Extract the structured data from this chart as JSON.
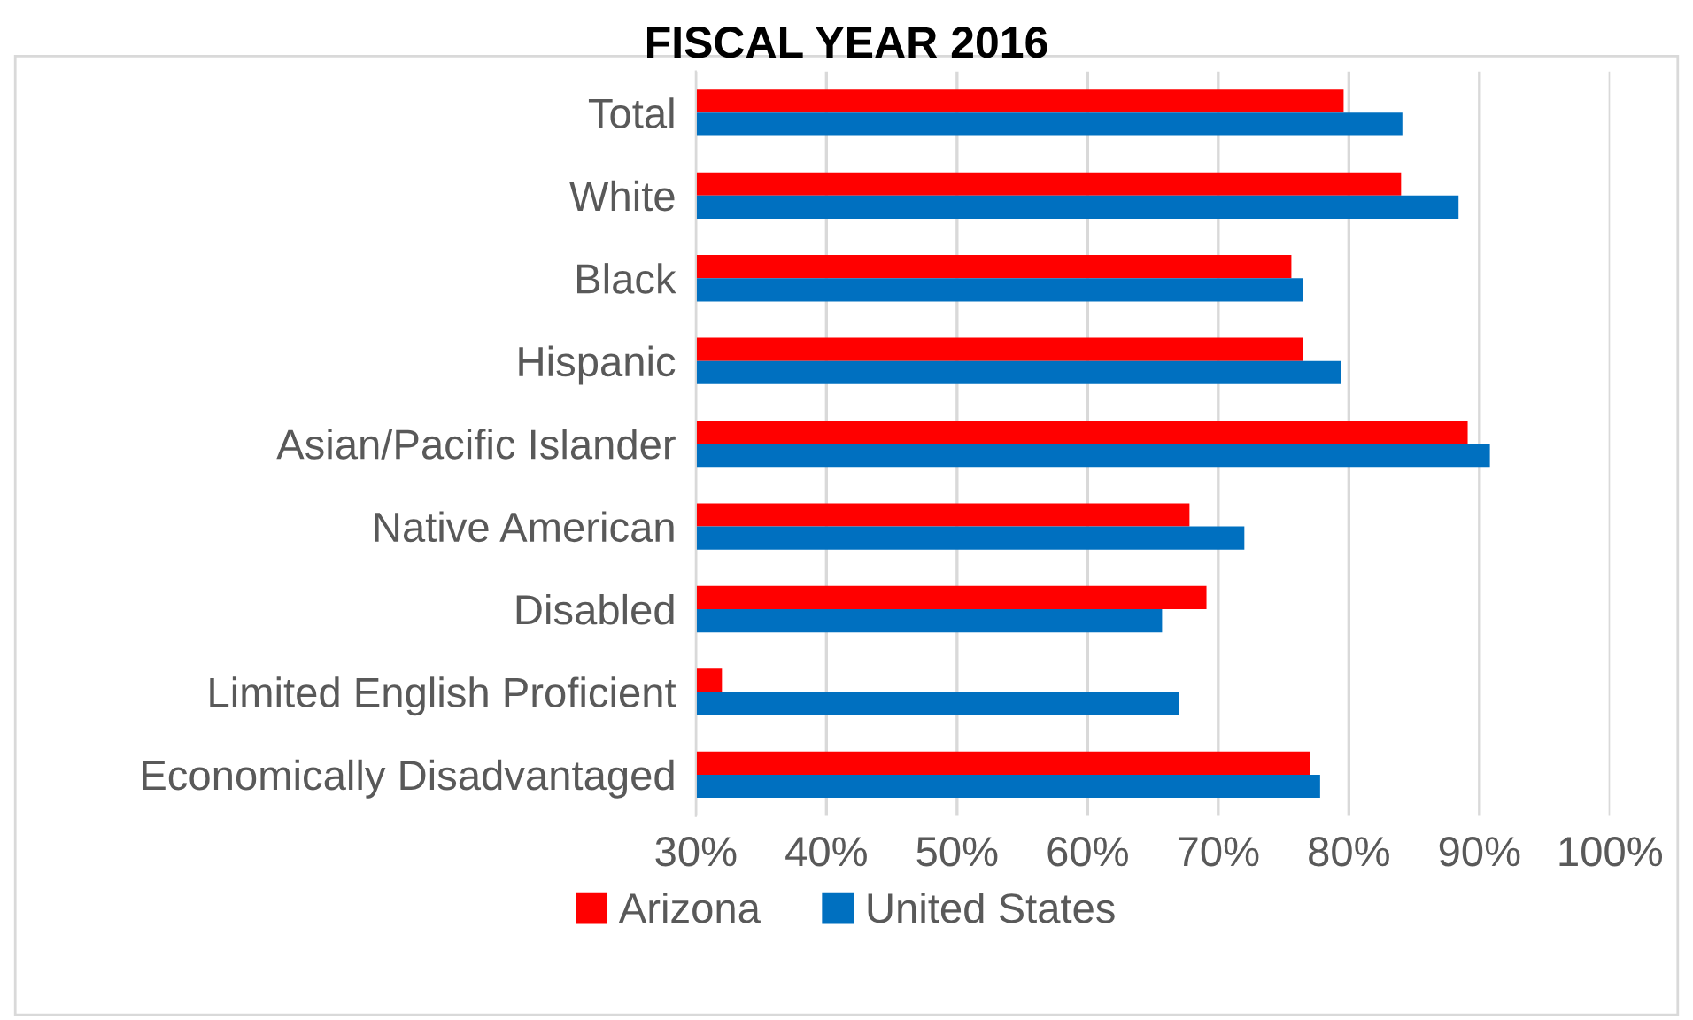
{
  "chart_data": {
    "type": "bar",
    "orientation": "horizontal",
    "title": "FISCAL YEAR 2016",
    "categories": [
      "Total",
      "White",
      "Black",
      "Hispanic",
      "Asian/Pacific Islander",
      "Native American",
      "Disabled",
      "Limited English Proficient",
      "Economically Disadvantaged"
    ],
    "series": [
      {
        "name": "Arizona",
        "color": "#ff0000",
        "values": [
          79.6,
          84.0,
          75.6,
          76.5,
          89.1,
          67.8,
          69.1,
          32.0,
          77.0
        ]
      },
      {
        "name": "United States",
        "color": "#0070c0",
        "values": [
          84.1,
          88.4,
          76.5,
          79.4,
          90.8,
          72.0,
          65.7,
          67.0,
          77.8
        ]
      }
    ],
    "xlim": [
      30,
      100
    ],
    "xticks": [
      {
        "value": 30,
        "label": "30%"
      },
      {
        "value": 40,
        "label": "40%"
      },
      {
        "value": 50,
        "label": "50%"
      },
      {
        "value": 60,
        "label": "60%"
      },
      {
        "value": 70,
        "label": "70%"
      },
      {
        "value": 80,
        "label": "80%"
      },
      {
        "value": 90,
        "label": "90%"
      },
      {
        "value": 100,
        "label": "100%"
      }
    ],
    "grid": "x",
    "legend": "bottom"
  }
}
